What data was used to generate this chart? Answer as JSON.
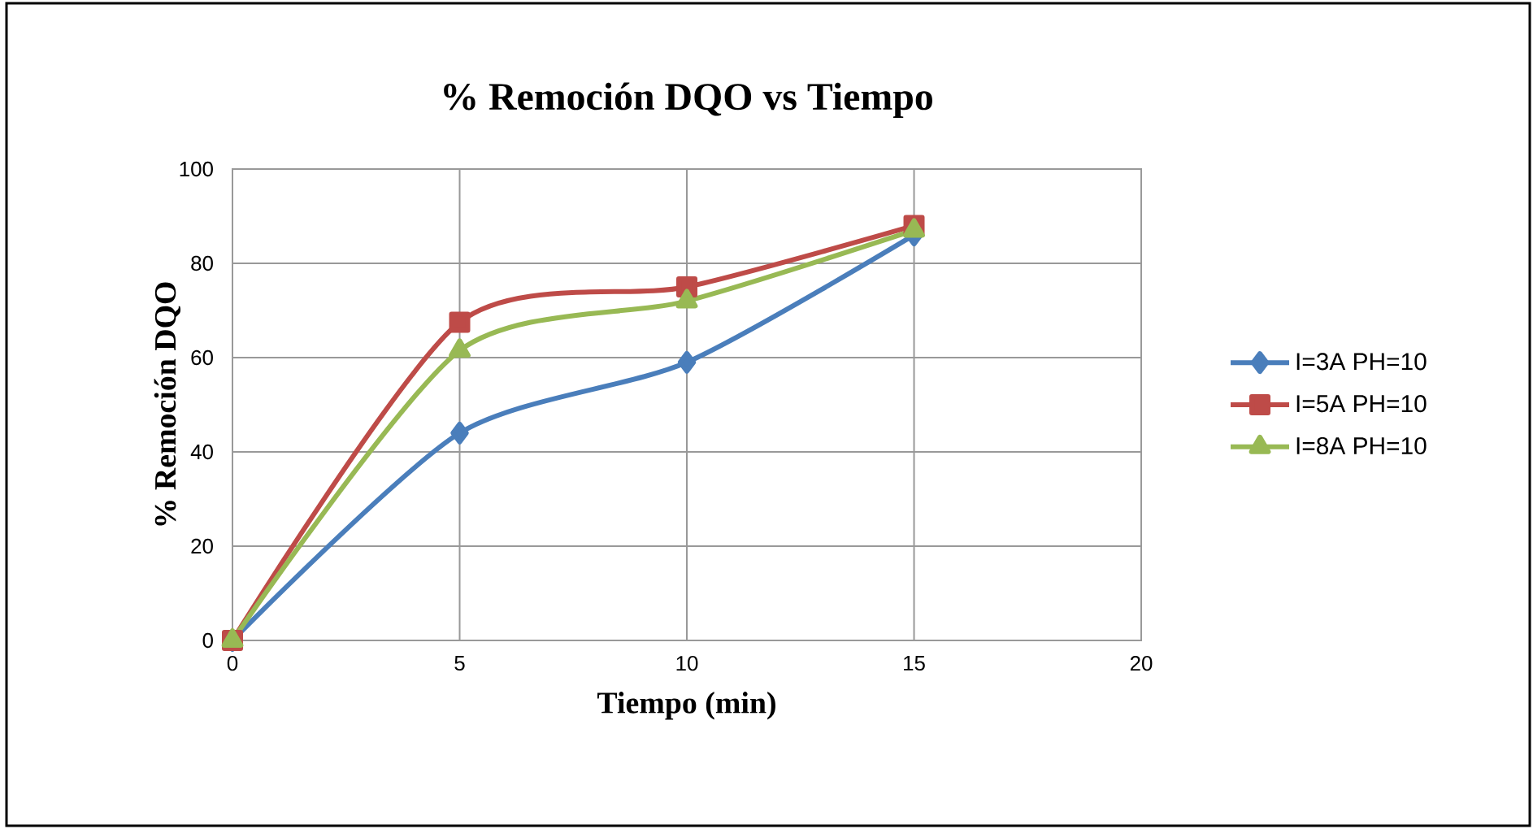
{
  "chart_data": {
    "type": "line",
    "title": "% Remoción DQO vs Tiempo",
    "xlabel": "Tiempo (min)",
    "ylabel": "% Remoción DQO",
    "x": [
      0,
      5,
      10,
      15
    ],
    "series": [
      {
        "name": "I=3A  PH=10",
        "color": "#4a7ebb",
        "marker": "diamond",
        "values": [
          0,
          44,
          59,
          86
        ]
      },
      {
        "name": "I=5A  PH=10",
        "color": "#be4b48",
        "marker": "square",
        "values": [
          0,
          67.5,
          75,
          88
        ]
      },
      {
        "name": "I=8A  PH=10",
        "color": "#98b954",
        "marker": "triangle",
        "values": [
          0,
          61.5,
          72,
          87
        ]
      }
    ],
    "xlim": [
      0,
      20
    ],
    "ylim": [
      0,
      100
    ],
    "xticks": [
      0,
      5,
      10,
      15,
      20
    ],
    "yticks": [
      0,
      20,
      40,
      60,
      80,
      100
    ],
    "grid": true,
    "legend": "right",
    "line_style": "solid"
  }
}
